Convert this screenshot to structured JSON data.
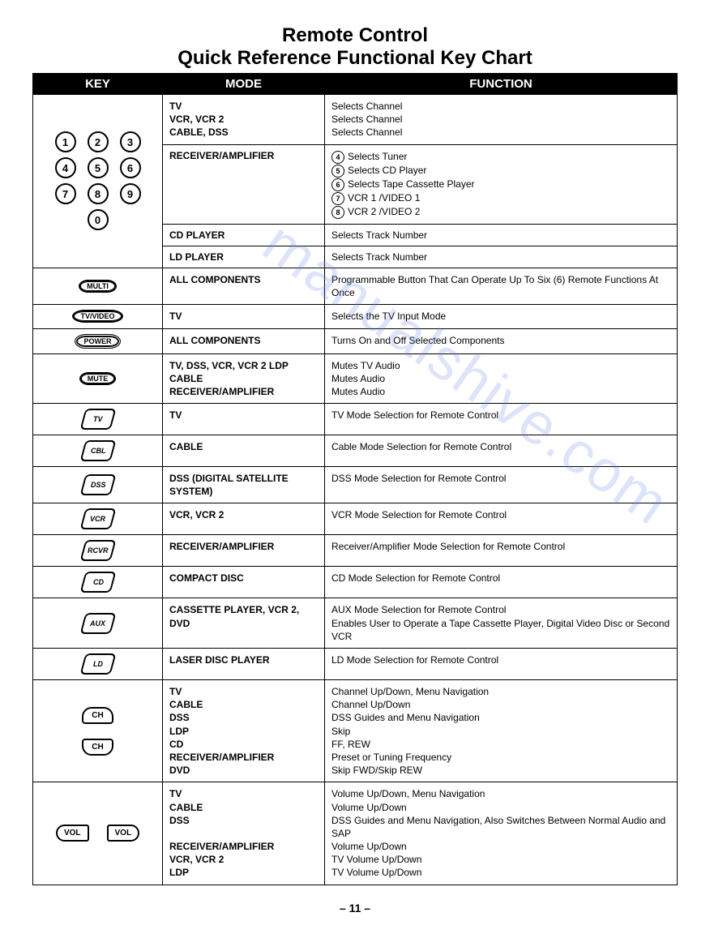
{
  "title_line1": "Remote Control",
  "title_line2": "Quick Reference Functional Key Chart",
  "headers": {
    "key": "KEY",
    "mode": "MODE",
    "func": "FUNCTION"
  },
  "watermark": "manualshive.com",
  "page_number": "– 11 –",
  "keypad_digits": [
    "1",
    "2",
    "3",
    "4",
    "5",
    "6",
    "7",
    "8",
    "9",
    "0"
  ],
  "row1": {
    "a_mode": "TV\nVCR, VCR 2\nCABLE, DSS",
    "a_func": "Selects Channel\nSelects Channel\nSelects Channel",
    "b_mode": "RECEIVER/AMPLIFIER",
    "b_items": [
      {
        "n": "4",
        "t": "Selects Tuner"
      },
      {
        "n": "5",
        "t": "Selects CD Player"
      },
      {
        "n": "6",
        "t": "Selects Tape Cassette Player"
      },
      {
        "n": "7",
        "t": "VCR 1 /VIDEO 1"
      },
      {
        "n": "8",
        "t": "VCR 2 /VIDEO 2"
      }
    ],
    "c_mode": "CD PLAYER",
    "c_func": "Selects Track Number",
    "d_mode": "LD PLAYER",
    "d_func": "Selects Track Number"
  },
  "rows": [
    {
      "key_label": "MULTI",
      "key_style": "oval",
      "mode": "ALL COMPONENTS",
      "func": "Programmable Button That Can Operate Up To Six (6) Remote Functions At Once"
    },
    {
      "key_label": "TV/VIDEO",
      "key_style": "oval",
      "mode": "TV",
      "func": "Selects the TV Input Mode"
    },
    {
      "key_label": "POWER",
      "key_style": "ovaldbl",
      "mode": "ALL COMPONENTS",
      "func": "Turns On and Off Selected Components"
    },
    {
      "key_label": "MUTE",
      "key_style": "oval",
      "mode": "TV, DSS, VCR, VCR 2 LDP\nCABLE\nRECEIVER/AMPLIFIER",
      "func": "Mutes TV Audio\nMutes Audio\nMutes Audio"
    },
    {
      "key_label": "TV",
      "key_style": "diamond",
      "mode": "TV",
      "func": "TV Mode Selection for Remote Control"
    },
    {
      "key_label": "CBL",
      "key_style": "diamond",
      "mode": "CABLE",
      "func": "Cable Mode Selection for Remote Control"
    },
    {
      "key_label": "DSS",
      "key_style": "diamond",
      "mode": "DSS (DIGITAL SATELLITE SYSTEM)",
      "func": "DSS Mode Selection for Remote Control"
    },
    {
      "key_label": "VCR",
      "key_style": "diamond",
      "mode": "VCR, VCR 2",
      "func": "VCR Mode Selection for Remote Control"
    },
    {
      "key_label": "RCVR",
      "key_style": "diamond",
      "mode": "RECEIVER/AMPLIFIER",
      "func": "Receiver/Amplifier Mode Selection for Remote Control"
    },
    {
      "key_label": "CD",
      "key_style": "diamond",
      "mode": "COMPACT DISC",
      "func": "CD Mode Selection for Remote Control"
    },
    {
      "key_label": "AUX",
      "key_style": "diamond",
      "mode": "CASSETTE PLAYER, VCR 2, DVD",
      "func": "AUX Mode Selection for Remote Control\nEnables User to Operate a Tape Cassette Player, Digital Video Disc or Second VCR"
    },
    {
      "key_label": "LD",
      "key_style": "diamond",
      "mode": "LASER DISC PLAYER",
      "func": "LD Mode Selection for Remote Control"
    }
  ],
  "ch_row": {
    "up": "CH",
    "down": "CH",
    "mode": "TV\nCABLE\nDSS\nLDP\nCD\nRECEIVER/AMPLIFIER\nDVD",
    "func": "Channel Up/Down, Menu Navigation\nChannel Up/Down\nDSS Guides and Menu Navigation\nSkip\nFF, REW\nPreset or Tuning Frequency\nSkip FWD/Skip REW"
  },
  "vol_row": {
    "left": "VOL",
    "right": "VOL",
    "mode": "TV\nCABLE\nDSS\n\nRECEIVER/AMPLIFIER\nVCR, VCR 2\nLDP",
    "func": "Volume Up/Down, Menu Navigation\nVolume Up/Down\nDSS Guides and Menu Navigation, Also Switches Between Normal Audio and SAP\nVolume Up/Down\nTV Volume Up/Down\nTV Volume Up/Down"
  }
}
